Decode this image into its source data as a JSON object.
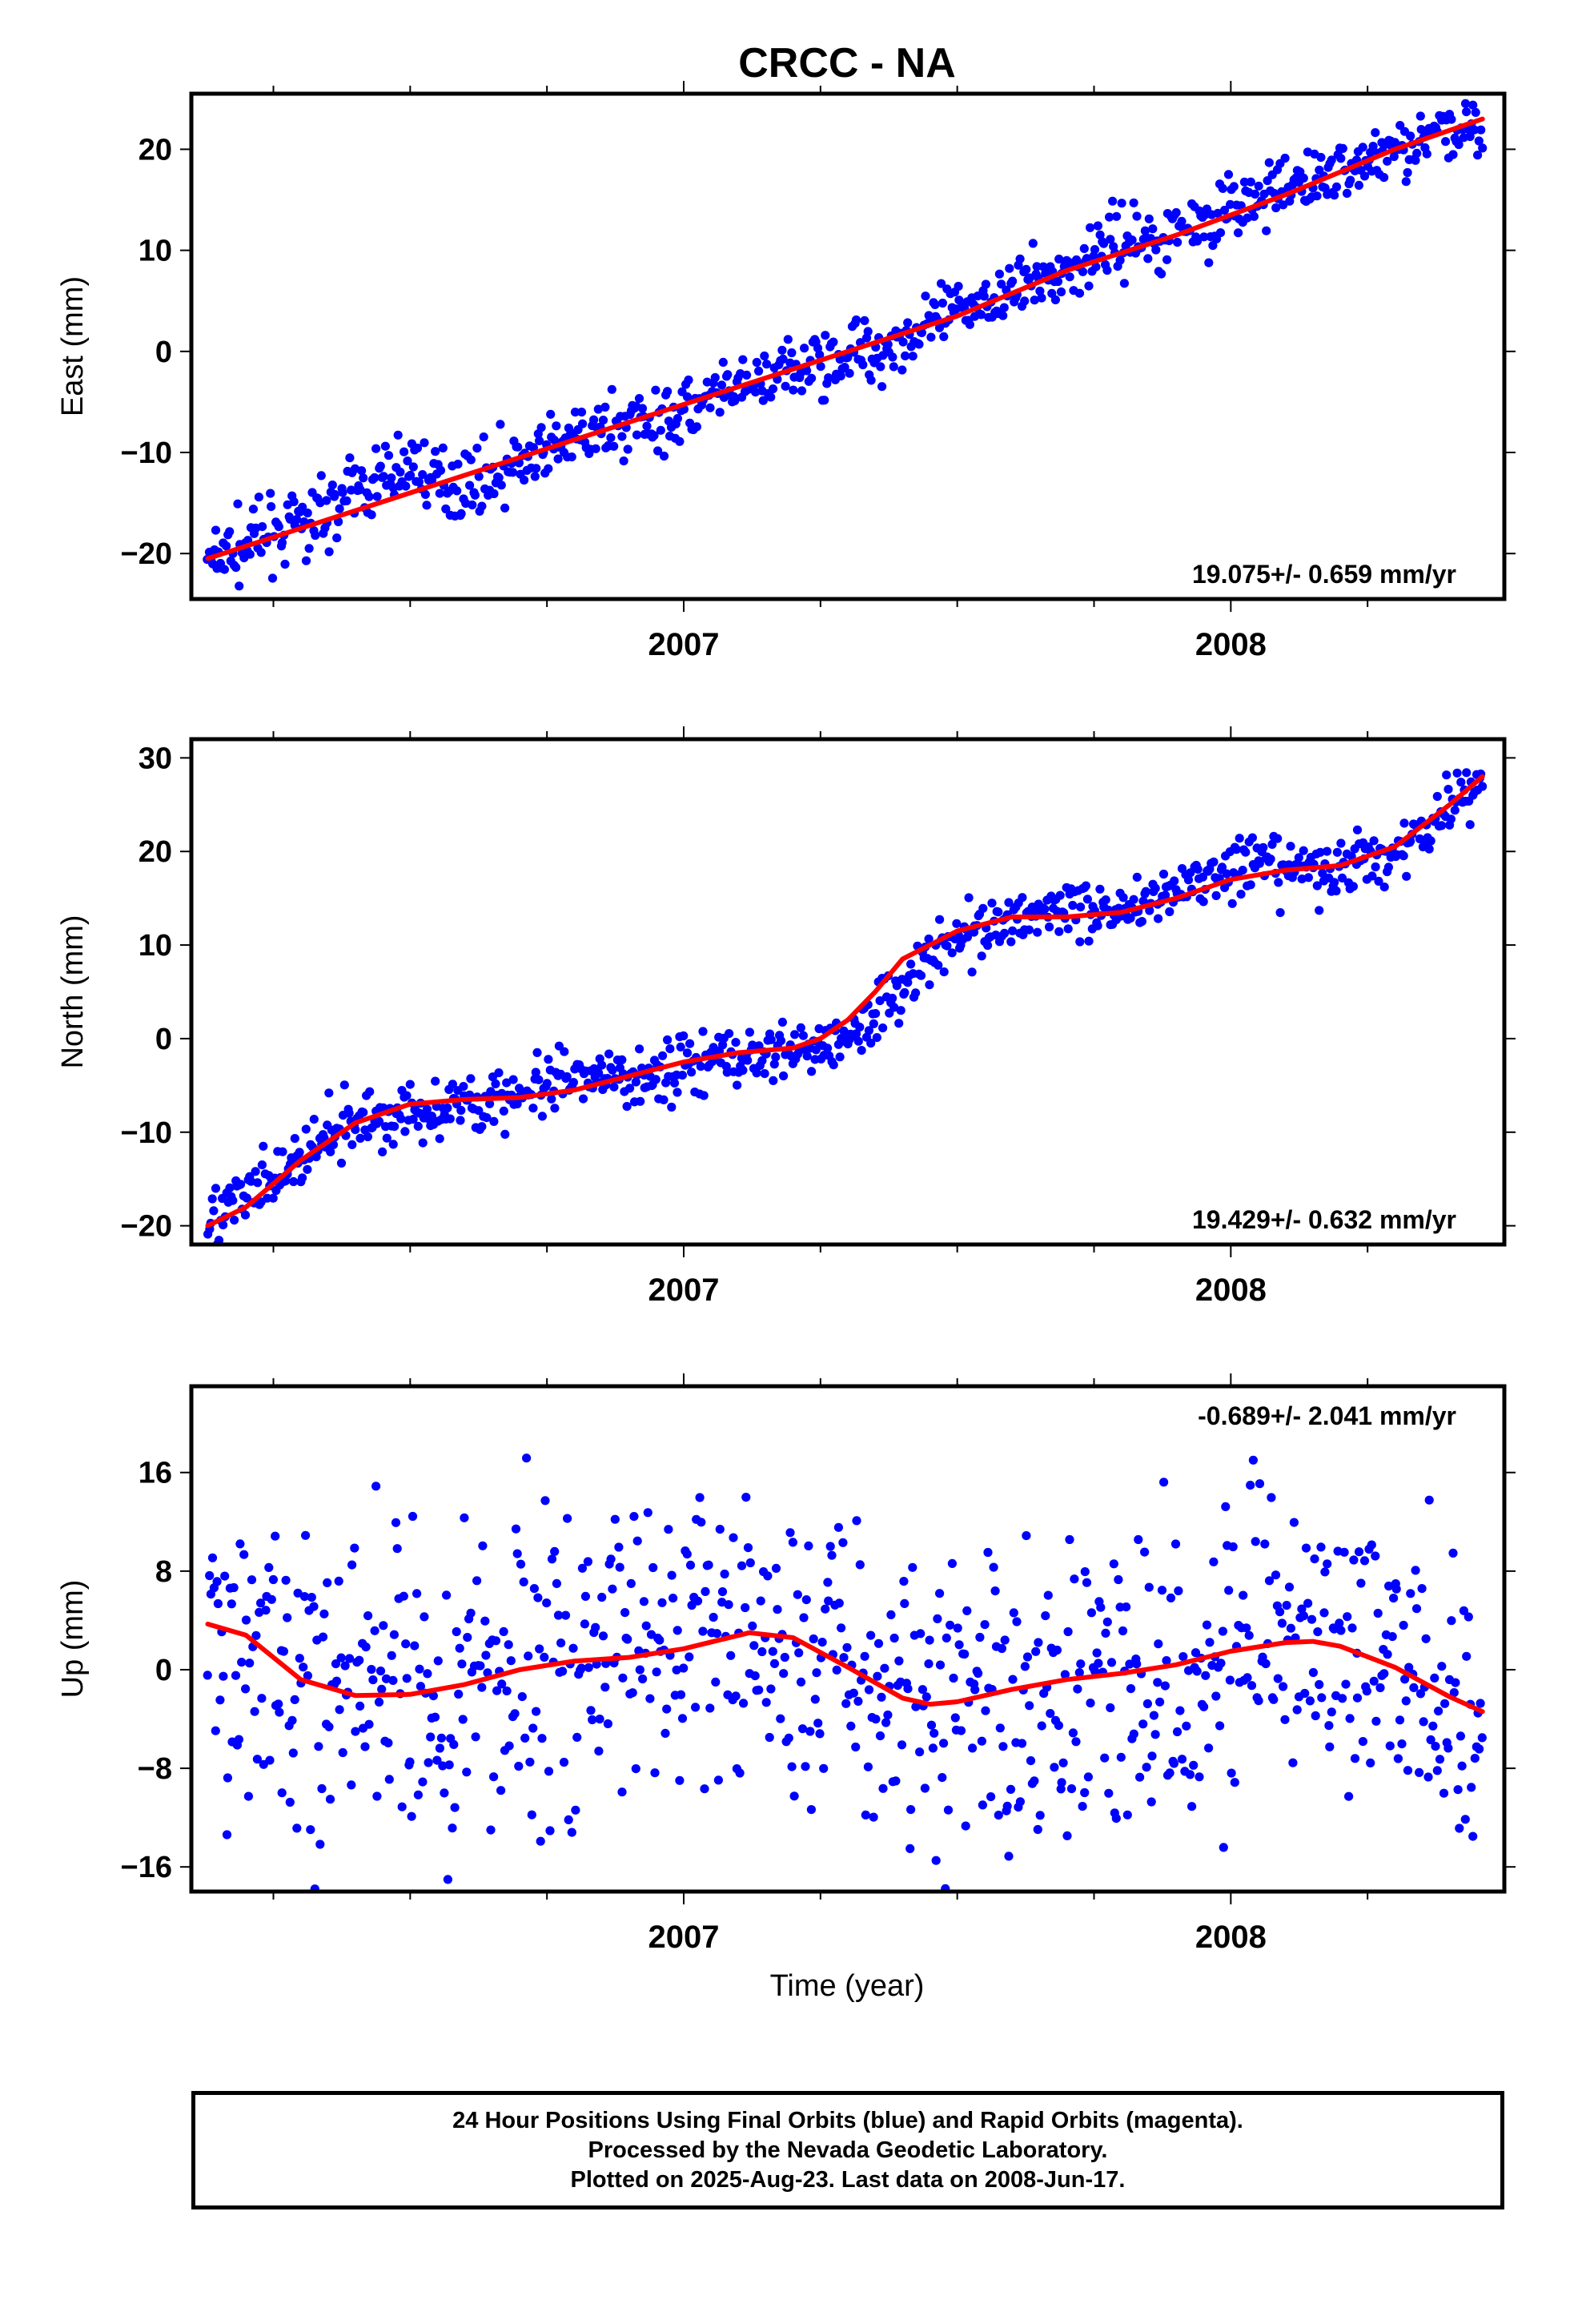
{
  "title": "CRCC - NA",
  "colors": {
    "final_orbits": "#0000ff",
    "model_fit": "#ff0000",
    "axes": "#000000"
  },
  "xlabel": "Time (year)",
  "footer": {
    "line1": "24 Hour Positions Using Final Orbits (blue) and Rapid Orbits (magenta).",
    "line2": "Processed by the Nevada Geodetic Laboratory.",
    "line3": "Plotted on 2025-Aug-23. Last data on 2008-Jun-17."
  },
  "chart_data": [
    {
      "type": "scatter",
      "panel": "east",
      "ylabel": "East (mm)",
      "ylim": [
        -24.5,
        25.5
      ],
      "yticks": [
        -20,
        -10,
        0,
        10,
        20
      ],
      "xlim": [
        2006.1,
        2008.5
      ],
      "xticks": [
        2007,
        2008
      ],
      "rate_label": "19.075+/- 0.659 mm/yr",
      "series": [
        {
          "kind": "points",
          "x": [
            2006.13,
            2006.2,
            2006.3,
            2006.4,
            2006.5,
            2006.55,
            2006.6,
            2006.7,
            2006.8,
            2006.9,
            2007.0,
            2007.1,
            2007.2,
            2007.3,
            2007.4,
            2007.5,
            2007.6,
            2007.7,
            2007.75,
            2007.8,
            2007.85,
            2007.9,
            2008.0,
            2008.1,
            2008.2,
            2008.3,
            2008.4,
            2008.46
          ],
          "y": [
            -21,
            -19,
            -17,
            -14,
            -11,
            -13,
            -13,
            -11,
            -9,
            -7,
            -6,
            -4,
            -2,
            0,
            1,
            4,
            6,
            8,
            10,
            11,
            11,
            12,
            14,
            16,
            18,
            20,
            22,
            23
          ]
        },
        {
          "kind": "fit",
          "x": [
            2006.13,
            2006.3,
            2006.5,
            2006.7,
            2006.9,
            2007.1,
            2007.3,
            2007.5,
            2007.7,
            2007.9,
            2008.1,
            2008.3,
            2008.46
          ],
          "y": [
            -20.5,
            -17.5,
            -14,
            -10.5,
            -7,
            -3.5,
            0,
            3.5,
            8,
            11.5,
            15.5,
            20,
            23
          ]
        }
      ]
    },
    {
      "type": "scatter",
      "panel": "north",
      "ylabel": "North (mm)",
      "ylim": [
        -22,
        32
      ],
      "yticks": [
        -20,
        -10,
        0,
        10,
        20,
        30
      ],
      "xlim": [
        2006.1,
        2008.5
      ],
      "xticks": [
        2007,
        2008
      ],
      "rate_label": "19.429+/- 0.632 mm/yr",
      "series": [
        {
          "kind": "points",
          "x": [
            2006.13,
            2006.2,
            2006.3,
            2006.4,
            2006.5,
            2006.6,
            2006.7,
            2006.8,
            2006.9,
            2007.0,
            2007.1,
            2007.2,
            2007.3,
            2007.4,
            2007.5,
            2007.6,
            2007.7,
            2007.8,
            2007.9,
            2008.0,
            2008.1,
            2008.2,
            2008.3,
            2008.4,
            2008.46
          ],
          "y": [
            -19,
            -17,
            -13,
            -9,
            -8,
            -7,
            -6,
            -5,
            -4,
            -3,
            -2,
            -1,
            0,
            6,
            11,
            13,
            14,
            14,
            16,
            18,
            18,
            18,
            20,
            25,
            28
          ]
        },
        {
          "kind": "fit",
          "x": [
            2006.13,
            2006.2,
            2006.3,
            2006.4,
            2006.5,
            2006.6,
            2006.7,
            2006.8,
            2006.9,
            2007.0,
            2007.1,
            2007.2,
            2007.25,
            2007.3,
            2007.35,
            2007.4,
            2007.5,
            2007.6,
            2007.7,
            2007.8,
            2007.9,
            2008.0,
            2008.1,
            2008.2,
            2008.3,
            2008.4,
            2008.46
          ],
          "y": [
            -20,
            -18,
            -13,
            -9,
            -7,
            -6.5,
            -6.3,
            -5.5,
            -4,
            -2.5,
            -1.5,
            -1,
            0,
            2,
            5,
            8.5,
            11.5,
            13,
            13,
            13.5,
            15,
            17,
            18,
            18.5,
            20.5,
            25,
            28
          ]
        }
      ]
    },
    {
      "type": "scatter",
      "panel": "up",
      "ylabel": "Up (mm)",
      "ylim": [
        -18,
        23
      ],
      "yticks": [
        -16,
        -8,
        0,
        8,
        16
      ],
      "xlim": [
        2006.1,
        2008.5
      ],
      "xticks": [
        2007,
        2008
      ],
      "rate_label": "-0.689+/- 2.041 mm/yr",
      "series": [
        {
          "kind": "points",
          "x": [
            2006.13,
            2006.2,
            2006.3,
            2006.4,
            2006.5,
            2006.6,
            2006.7,
            2006.8,
            2006.9,
            2007.0,
            2007.1,
            2007.2,
            2007.3,
            2007.4,
            2007.5,
            2007.6,
            2007.7,
            2007.8,
            2007.9,
            2008.0,
            2008.1,
            2008.2,
            2008.3,
            2008.4,
            2008.46
          ],
          "y": [
            4,
            2,
            -1,
            -2,
            -3,
            -2,
            0,
            1,
            2,
            2,
            3,
            2,
            0,
            -2,
            -3,
            -2,
            -1,
            0,
            0,
            1,
            2,
            2,
            0,
            -2,
            -3
          ]
        },
        {
          "kind": "fit",
          "x": [
            2006.13,
            2006.2,
            2006.3,
            2006.4,
            2006.5,
            2006.6,
            2006.7,
            2006.8,
            2006.9,
            2007.0,
            2007.12,
            2007.2,
            2007.3,
            2007.4,
            2007.45,
            2007.5,
            2007.6,
            2007.7,
            2007.8,
            2007.9,
            2008.0,
            2008.1,
            2008.15,
            2008.2,
            2008.3,
            2008.4,
            2008.46
          ],
          "y": [
            3.7,
            2.8,
            -0.8,
            -2.1,
            -2.0,
            -1.2,
            0,
            0.7,
            1.0,
            1.7,
            3.0,
            2.6,
            0.2,
            -2.3,
            -2.8,
            -2.6,
            -1.6,
            -0.8,
            -0.3,
            0.4,
            1.5,
            2.2,
            2.3,
            1.9,
            0.2,
            -2.2,
            -3.4
          ]
        }
      ]
    }
  ]
}
